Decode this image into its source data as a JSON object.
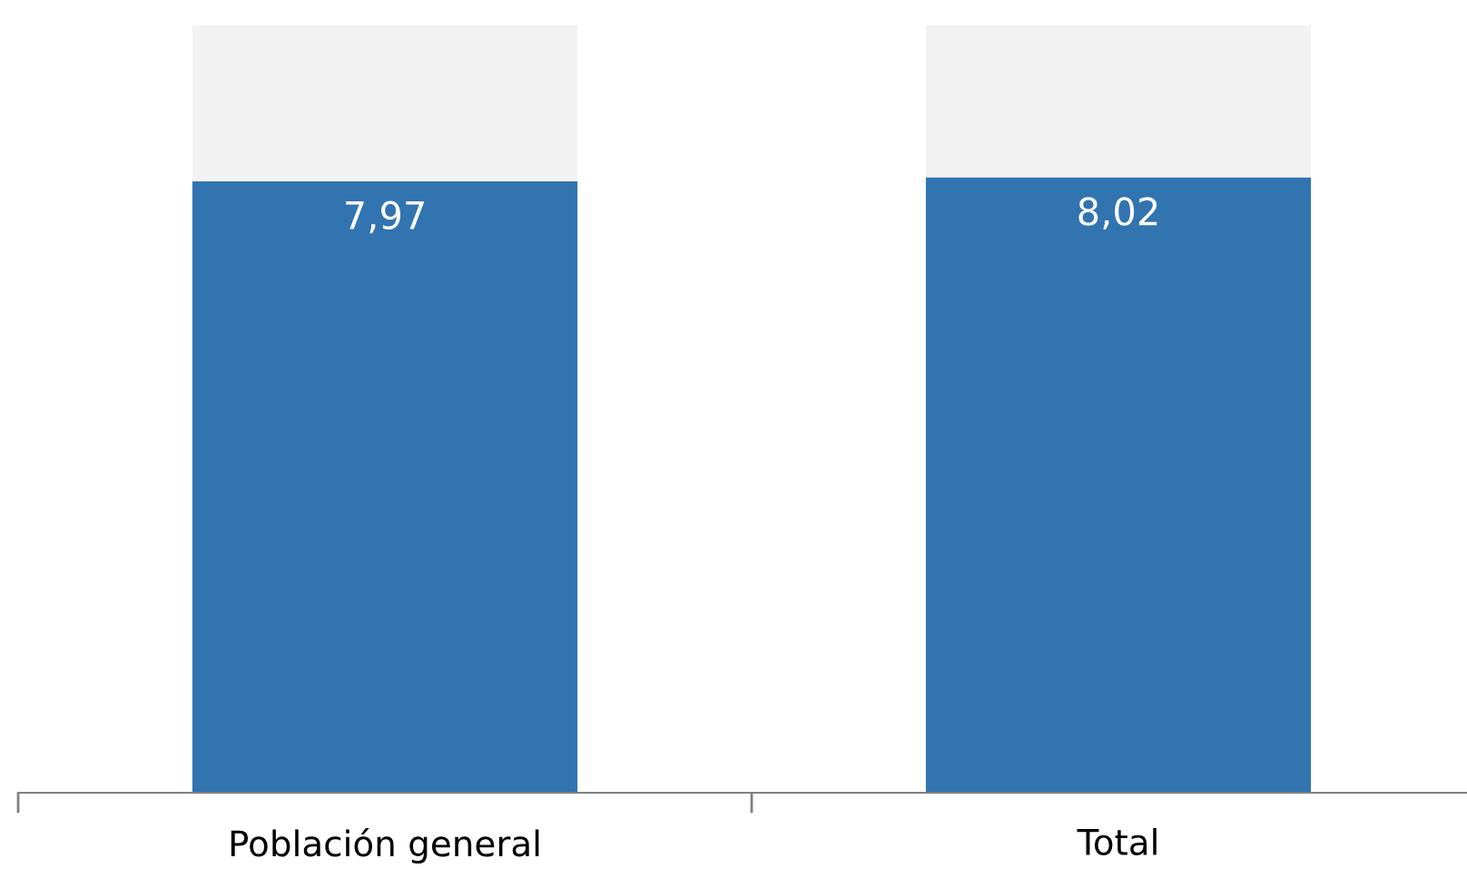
{
  "chart_data": {
    "type": "bar",
    "stacked": true,
    "categories": [
      "Población general",
      "Total"
    ],
    "series": [
      {
        "color": "#3174b0",
        "values": [
          7.97,
          8.02
        ],
        "value_labels": [
          "7,97",
          "8,02"
        ]
      },
      {
        "color": "#f2f2f2",
        "values": [
          2.03,
          1.98
        ]
      }
    ],
    "grid": false,
    "legend": false
  }
}
